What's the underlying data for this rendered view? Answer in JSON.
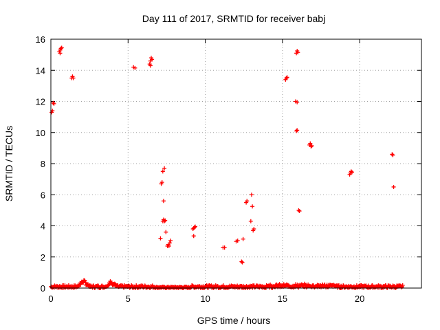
{
  "chart_data": {
    "type": "scatter",
    "title": "Day 111 of 2017, SRMTID for receiver babj",
    "xlabel": "GPS time / hours",
    "ylabel": "SRMTID / TECUs",
    "xlim": [
      0,
      24
    ],
    "ylim": [
      0,
      16
    ],
    "xticks": [
      0,
      5,
      10,
      15,
      20
    ],
    "yticks": [
      0,
      2,
      4,
      6,
      8,
      10,
      12,
      14,
      16
    ],
    "grid": true,
    "marker": "+",
    "color": "#ff0000",
    "series": [
      {
        "name": "SRMTID",
        "points": [
          [
            0.05,
            11.3
          ],
          [
            0.1,
            11.4
          ],
          [
            0.15,
            11.9
          ],
          [
            0.2,
            11.85
          ],
          [
            0.55,
            15.2
          ],
          [
            0.6,
            15.3
          ],
          [
            0.65,
            15.4
          ],
          [
            0.7,
            15.45
          ],
          [
            0.6,
            15.1
          ],
          [
            1.35,
            13.5
          ],
          [
            1.4,
            13.6
          ],
          [
            1.45,
            13.5
          ],
          [
            5.35,
            14.2
          ],
          [
            5.45,
            14.15
          ],
          [
            6.4,
            14.4
          ],
          [
            6.45,
            14.6
          ],
          [
            6.5,
            14.8
          ],
          [
            6.55,
            14.7
          ],
          [
            6.45,
            14.3
          ],
          [
            7.15,
            6.7
          ],
          [
            7.2,
            6.8
          ],
          [
            7.25,
            7.5
          ],
          [
            7.35,
            7.7
          ],
          [
            7.3,
            5.6
          ],
          [
            7.25,
            4.3
          ],
          [
            7.3,
            4.4
          ],
          [
            7.35,
            4.3
          ],
          [
            7.4,
            4.35
          ],
          [
            7.1,
            3.2
          ],
          [
            7.45,
            3.6
          ],
          [
            7.55,
            2.7
          ],
          [
            7.6,
            2.8
          ],
          [
            7.65,
            2.7
          ],
          [
            7.7,
            2.9
          ],
          [
            7.75,
            3.05
          ],
          [
            9.2,
            3.8
          ],
          [
            9.25,
            3.85
          ],
          [
            9.3,
            3.9
          ],
          [
            9.35,
            3.95
          ],
          [
            9.25,
            3.35
          ],
          [
            11.15,
            2.6
          ],
          [
            11.25,
            2.6
          ],
          [
            12.0,
            3.0
          ],
          [
            12.1,
            3.05
          ],
          [
            12.45,
            3.15
          ],
          [
            12.35,
            1.7
          ],
          [
            12.4,
            1.65
          ],
          [
            12.65,
            5.5
          ],
          [
            12.7,
            5.6
          ],
          [
            13.0,
            6.0
          ],
          [
            13.05,
            5.25
          ],
          [
            12.95,
            4.3
          ],
          [
            13.1,
            3.7
          ],
          [
            13.15,
            3.8
          ],
          [
            15.2,
            13.4
          ],
          [
            15.25,
            13.5
          ],
          [
            15.3,
            13.55
          ],
          [
            15.9,
            15.1
          ],
          [
            15.95,
            15.25
          ],
          [
            16.0,
            15.15
          ],
          [
            15.85,
            12.0
          ],
          [
            15.95,
            11.95
          ],
          [
            15.9,
            10.1
          ],
          [
            15.95,
            10.15
          ],
          [
            16.05,
            5.0
          ],
          [
            16.1,
            4.95
          ],
          [
            16.75,
            9.2
          ],
          [
            16.8,
            9.3
          ],
          [
            16.85,
            9.1
          ],
          [
            16.9,
            9.15
          ],
          [
            19.35,
            7.3
          ],
          [
            19.4,
            7.4
          ],
          [
            19.45,
            7.5
          ],
          [
            19.5,
            7.45
          ],
          [
            22.1,
            8.6
          ],
          [
            22.15,
            8.55
          ],
          [
            22.2,
            6.5
          ]
        ],
        "baseline": {
          "x_range": [
            0.0,
            22.8
          ],
          "y_range": [
            0.0,
            0.5
          ],
          "bumps": [
            [
              2.1,
              0.45
            ],
            [
              3.9,
              0.35
            ]
          ]
        }
      }
    ]
  }
}
